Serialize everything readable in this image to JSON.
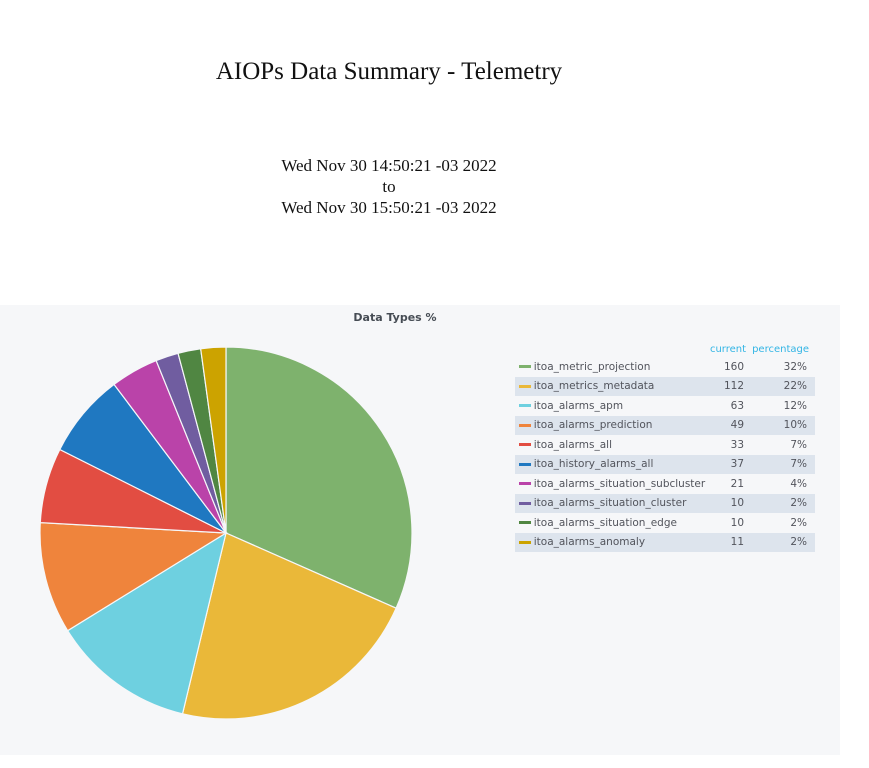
{
  "report": {
    "title": "AIOPs Data Summary - Telemetry",
    "range_start": "Wed Nov 30 14:50:21 -03 2022",
    "range_sep": "to",
    "range_end": "Wed Nov 30 15:50:21 -03 2022"
  },
  "chart_data": {
    "type": "pie",
    "title": "Data Types %",
    "legend_columns": [
      "current",
      "percentage"
    ],
    "legend_placement": "right",
    "slices": [
      {
        "name": "itoa_metric_projection",
        "current": 160,
        "percentage": "32%",
        "color": "#7eb26d"
      },
      {
        "name": "itoa_metrics_metadata",
        "current": 112,
        "percentage": "22%",
        "color": "#eab839"
      },
      {
        "name": "itoa_alarms_apm",
        "current": 63,
        "percentage": "12%",
        "color": "#6ed0e0"
      },
      {
        "name": "itoa_alarms_prediction",
        "current": 49,
        "percentage": "10%",
        "color": "#ef843c"
      },
      {
        "name": "itoa_alarms_all",
        "current": 33,
        "percentage": "7%",
        "color": "#e24d42"
      },
      {
        "name": "itoa_history_alarms_all",
        "current": 37,
        "percentage": "7%",
        "color": "#1f78c1"
      },
      {
        "name": "itoa_alarms_situation_subcluster",
        "current": 21,
        "percentage": "4%",
        "color": "#ba43a9"
      },
      {
        "name": "itoa_alarms_situation_cluster",
        "current": 10,
        "percentage": "2%",
        "color": "#705da0"
      },
      {
        "name": "itoa_alarms_situation_edge",
        "current": 10,
        "percentage": "2%",
        "color": "#508642"
      },
      {
        "name": "itoa_alarms_anomaly",
        "current": 11,
        "percentage": "2%",
        "color": "#cca300"
      }
    ]
  }
}
